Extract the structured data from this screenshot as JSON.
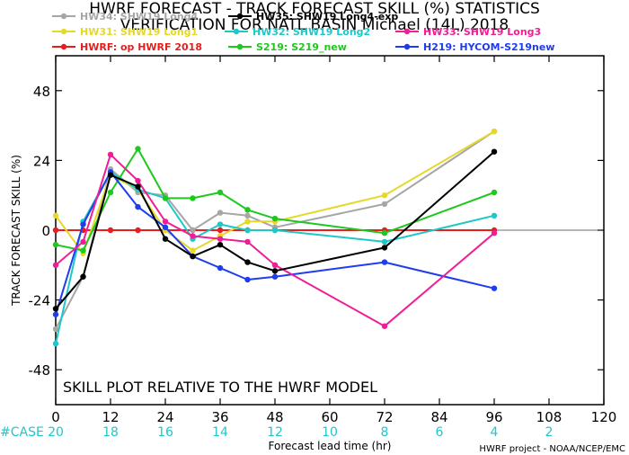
{
  "chart_data": {
    "type": "line",
    "title_line1": "HWRF FORECAST - TRACK FORECAST SKILL (%) STATISTICS",
    "title_line2": "VERIFICATION FOR NATL BASIN Michael (14L) 2018",
    "ylabel": "TRACK FORECAST SKILL (%)",
    "xlabel": "Forecast lead time (hr)",
    "xlim": [
      0,
      120
    ],
    "ylim": [
      -60,
      60
    ],
    "xticks": [
      0,
      12,
      24,
      36,
      48,
      60,
      72,
      84,
      96,
      108,
      120
    ],
    "yticks": [
      -48,
      -24,
      0,
      24,
      48
    ],
    "note": "SKILL PLOT RELATIVE TO THE HWRF MODEL",
    "case_label": "#CASE",
    "cases": [
      {
        "x": 0,
        "n": "20"
      },
      {
        "x": 12,
        "n": "18"
      },
      {
        "x": 24,
        "n": "16"
      },
      {
        "x": 36,
        "n": "14"
      },
      {
        "x": 48,
        "n": "12"
      },
      {
        "x": 60,
        "n": "10"
      },
      {
        "x": 72,
        "n": "8"
      },
      {
        "x": 84,
        "n": "6"
      },
      {
        "x": 96,
        "n": "4"
      },
      {
        "x": 108,
        "n": "2"
      }
    ],
    "credit": "HWRF project - NOAA/NCEP/EMC",
    "legend_placement": "top",
    "series": [
      {
        "name": "HW34: SHW19 Long4",
        "color": "#a6a6a6",
        "x": [
          0,
          6,
          12,
          18,
          24,
          30,
          36,
          42,
          48,
          72,
          96
        ],
        "y": [
          -34,
          -16,
          21,
          13,
          12,
          0,
          6,
          5,
          1,
          9,
          34
        ]
      },
      {
        "name": "HW35: SHW19 Long4-exp",
        "color": "#000000",
        "x": [
          0,
          6,
          12,
          18,
          24,
          30,
          36,
          42,
          48,
          72,
          96
        ],
        "y": [
          -27,
          -16,
          19,
          15,
          -3,
          -9,
          -5,
          -11,
          -14,
          -6,
          27
        ]
      },
      {
        "name": "HW31: SHW19 Long1",
        "color": "#e6d82a",
        "x": [
          0,
          6,
          12,
          18,
          24,
          30,
          36,
          42,
          48,
          72,
          96
        ],
        "y": [
          5,
          -8,
          19,
          14,
          0,
          -7,
          -2,
          3,
          3,
          12,
          34
        ]
      },
      {
        "name": "HW32: SHW19 Long2",
        "color": "#1ec8c8",
        "x": [
          0,
          6,
          12,
          18,
          24,
          30,
          36,
          42,
          48,
          72,
          96
        ],
        "y": [
          -39,
          3,
          20,
          14,
          11,
          -3,
          2,
          0,
          0,
          -4,
          5
        ]
      },
      {
        "name": "HW33: SHW19 Long3",
        "color": "#f01e96",
        "x": [
          0,
          6,
          12,
          18,
          24,
          30,
          36,
          42,
          48,
          72,
          96
        ],
        "y": [
          -12,
          -4,
          26,
          17,
          3,
          -2,
          -3,
          -4,
          -12,
          -33,
          -1
        ]
      },
      {
        "name": "HWRF: op HWRF 2018",
        "color": "#e61e1e",
        "x": [
          0,
          6,
          12,
          18,
          24,
          30,
          36,
          42,
          48,
          72,
          96
        ],
        "y": [
          0,
          0,
          0,
          0,
          0,
          0,
          0,
          0,
          0,
          0,
          0
        ]
      },
      {
        "name": "S219: S219_new",
        "color": "#1ec81e",
        "x": [
          0,
          6,
          12,
          18,
          24,
          30,
          36,
          42,
          48,
          72,
          96
        ],
        "y": [
          -5,
          -7,
          13,
          28,
          11,
          11,
          13,
          7,
          4,
          -1,
          13
        ]
      },
      {
        "name": "H219: HYCOM-S219new",
        "color": "#1e3cf0",
        "x": [
          0,
          6,
          12,
          18,
          24,
          30,
          36,
          42,
          48,
          72,
          96
        ],
        "y": [
          -29,
          2,
          20,
          8,
          1,
          -9,
          -13,
          -17,
          -16,
          -11,
          -20
        ]
      }
    ]
  }
}
